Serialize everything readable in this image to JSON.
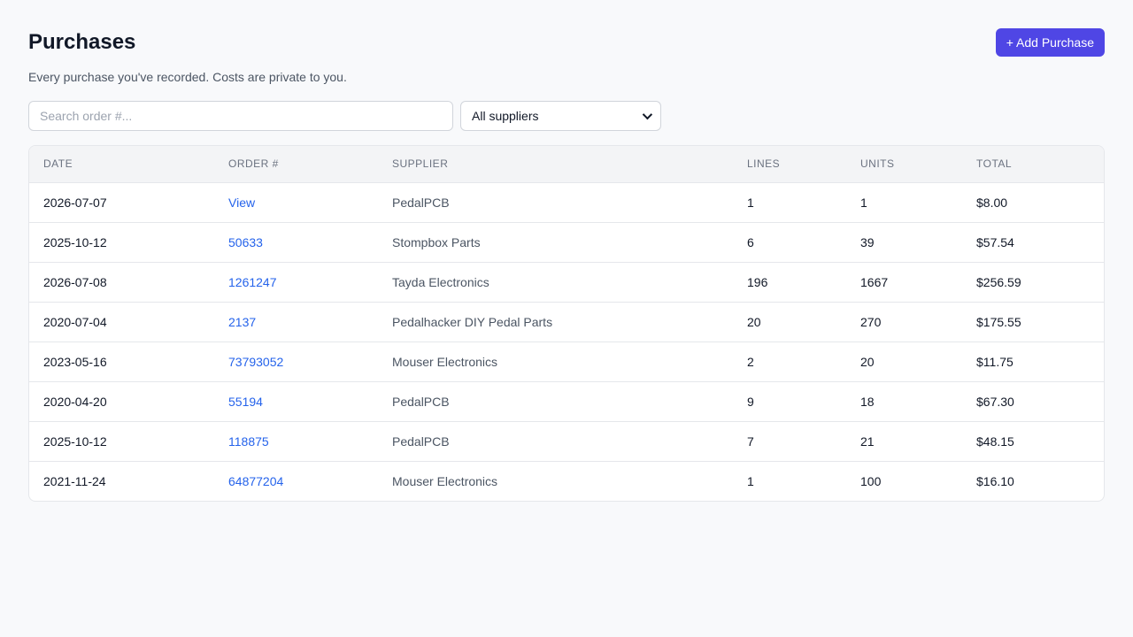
{
  "header": {
    "title": "Purchases",
    "subtitle": "Every purchase you've recorded. Costs are private to you.",
    "add_label": "+ Add Purchase"
  },
  "filters": {
    "search_placeholder": "Search order #...",
    "supplier_selected": "All suppliers"
  },
  "table": {
    "columns": [
      "DATE",
      "ORDER #",
      "SUPPLIER",
      "LINES",
      "UNITS",
      "TOTAL"
    ],
    "rows": [
      {
        "date": "2026-07-07",
        "order": "View",
        "supplier": "PedalPCB",
        "lines": "1",
        "units": "1",
        "total": "$8.00"
      },
      {
        "date": "2025-10-12",
        "order": "50633",
        "supplier": "Stompbox Parts",
        "lines": "6",
        "units": "39",
        "total": "$57.54"
      },
      {
        "date": "2026-07-08",
        "order": "1261247",
        "supplier": "Tayda Electronics",
        "lines": "196",
        "units": "1667",
        "total": "$256.59"
      },
      {
        "date": "2020-07-04",
        "order": "2137",
        "supplier": "Pedalhacker DIY Pedal Parts",
        "lines": "20",
        "units": "270",
        "total": "$175.55"
      },
      {
        "date": "2023-05-16",
        "order": "73793052",
        "supplier": "Mouser Electronics",
        "lines": "2",
        "units": "20",
        "total": "$11.75"
      },
      {
        "date": "2020-04-20",
        "order": "55194",
        "supplier": "PedalPCB",
        "lines": "9",
        "units": "18",
        "total": "$67.30"
      },
      {
        "date": "2025-10-12",
        "order": "118875",
        "supplier": "PedalPCB",
        "lines": "7",
        "units": "21",
        "total": "$48.15"
      },
      {
        "date": "2021-11-24",
        "order": "64877204",
        "supplier": "Mouser Electronics",
        "lines": "1",
        "units": "100",
        "total": "$16.10"
      }
    ]
  }
}
